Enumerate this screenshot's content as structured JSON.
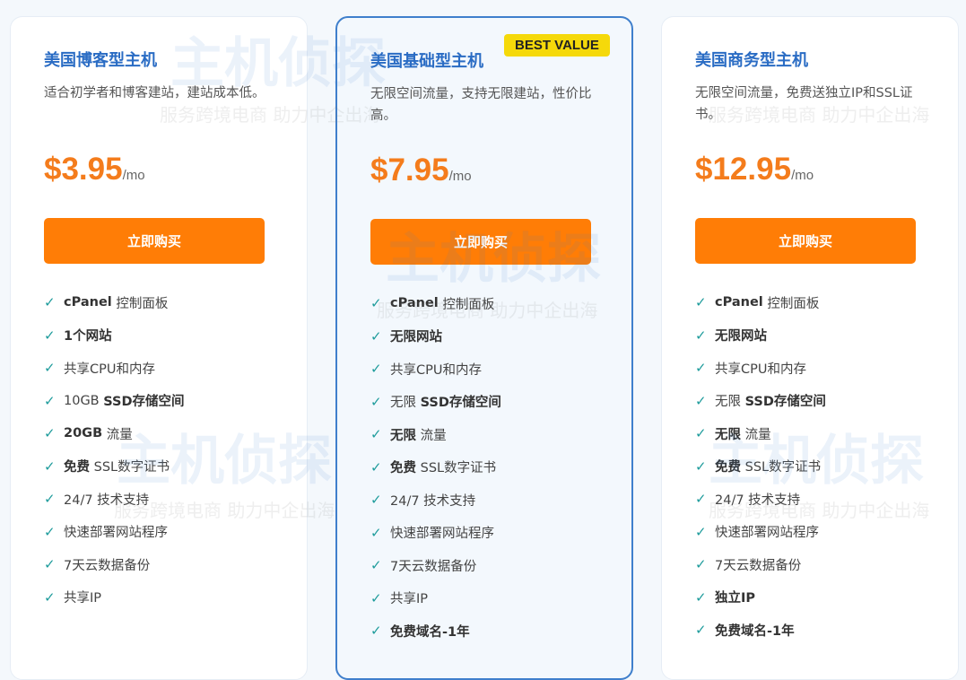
{
  "watermark": {
    "logo": "主机侦探",
    "slogan": "服务跨境电商 助力中企出海"
  },
  "colors": {
    "title": "#2a6cc4",
    "price": "#f47c1c",
    "button": "#ff7d06",
    "check": "#1f9c9c",
    "badge": "#f5d90a",
    "featured_border": "#3f7fcc"
  },
  "plans": [
    {
      "title": "美国博客型主机",
      "desc": "适合初学者和博客建站，建站成本低。",
      "price": "$3.95",
      "unit": "/mo",
      "button": "立即购买",
      "features": [
        [
          [
            "cPanel",
            1
          ],
          [
            " 控制面板",
            0
          ]
        ],
        [
          [
            "1个网站",
            1
          ]
        ],
        [
          [
            "共享CPU和内存",
            0
          ]
        ],
        [
          [
            "10GB ",
            0
          ],
          [
            "SSD存储空间",
            1
          ]
        ],
        [
          [
            "20GB",
            1
          ],
          [
            " 流量",
            0
          ]
        ],
        [
          [
            "免费",
            1
          ],
          [
            " SSL数字证书",
            0
          ]
        ],
        [
          [
            "24/7 技术支持",
            0
          ]
        ],
        [
          [
            "快速部署网站程序",
            0
          ]
        ],
        [
          [
            "7天云数据备份",
            0
          ]
        ],
        [
          [
            "共享IP",
            0
          ]
        ]
      ]
    },
    {
      "title": "美国基础型主机",
      "badge": "BEST VALUE",
      "desc": "无限空间流量，支持无限建站，性价比高。",
      "price": "$7.95",
      "unit": "/mo",
      "button": "立即购买",
      "features": [
        [
          [
            "cPanel",
            1
          ],
          [
            " 控制面板",
            0
          ]
        ],
        [
          [
            "无限网站",
            1
          ]
        ],
        [
          [
            "共享CPU和内存",
            0
          ]
        ],
        [
          [
            "无限 ",
            0
          ],
          [
            "SSD存储空间",
            1
          ]
        ],
        [
          [
            "无限",
            1
          ],
          [
            " 流量",
            0
          ]
        ],
        [
          [
            "免费",
            1
          ],
          [
            " SSL数字证书",
            0
          ]
        ],
        [
          [
            "24/7 技术支持",
            0
          ]
        ],
        [
          [
            "快速部署网站程序",
            0
          ]
        ],
        [
          [
            "7天云数据备份",
            0
          ]
        ],
        [
          [
            "共享IP",
            0
          ]
        ],
        [
          [
            "免费域名-1年",
            1
          ]
        ]
      ]
    },
    {
      "title": "美国商务型主机",
      "desc": "无限空间流量，免费送独立IP和SSL证书。",
      "price": "$12.95",
      "unit": "/mo",
      "button": "立即购买",
      "features": [
        [
          [
            "cPanel",
            1
          ],
          [
            " 控制面板",
            0
          ]
        ],
        [
          [
            "无限网站",
            1
          ]
        ],
        [
          [
            "共享CPU和内存",
            0
          ]
        ],
        [
          [
            "无限 ",
            0
          ],
          [
            "SSD存储空间",
            1
          ]
        ],
        [
          [
            "无限",
            1
          ],
          [
            " 流量",
            0
          ]
        ],
        [
          [
            "免费",
            1
          ],
          [
            " SSL数字证书",
            0
          ]
        ],
        [
          [
            "24/7 技术支持",
            0
          ]
        ],
        [
          [
            "快速部署网站程序",
            0
          ]
        ],
        [
          [
            "7天云数据备份",
            0
          ]
        ],
        [
          [
            "独立IP",
            1
          ]
        ],
        [
          [
            "免费域名-1年",
            1
          ]
        ]
      ]
    }
  ]
}
